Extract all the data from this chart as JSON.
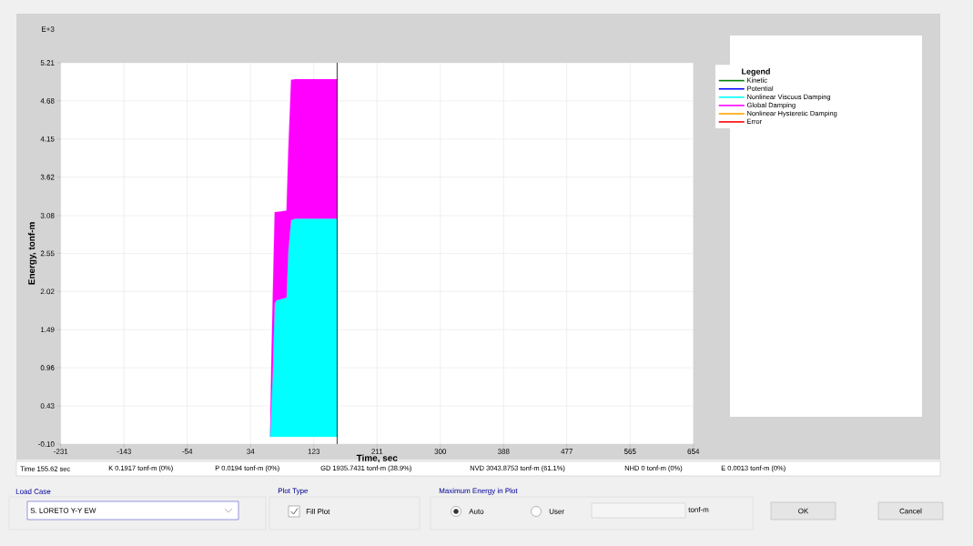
{
  "chart_data": {
    "type": "area",
    "stacked": true,
    "grid": true,
    "legend": "right",
    "legend_title": "Legend",
    "xlabel": "Time, sec",
    "ylabel": "Energy, tonf-m",
    "xlim": [
      -231,
      654
    ],
    "ylim": [
      -0.1,
      5.21
    ],
    "xticks": [
      -231,
      {
        "value": -142.5,
        "label": "-143"
      },
      -54,
      {
        "value": 34.5,
        "label": "34"
      },
      123,
      {
        "value": 211.5,
        "label": "211"
      },
      300,
      {
        "value": 388.5,
        "label": "388"
      },
      477,
      {
        "value": 565.5,
        "label": "565"
      },
      654
    ],
    "yticks": [
      {
        "value": -0.1,
        "label": "-0.10"
      },
      {
        "value": 0.431,
        "label": "0.43"
      },
      {
        "value": 0.962,
        "label": "0.96"
      },
      {
        "value": 1.493,
        "label": "1.49"
      },
      {
        "value": 2.024,
        "label": "2.02"
      },
      {
        "value": 2.555,
        "label": "2.55"
      },
      {
        "value": 3.08,
        "label": "3.08"
      },
      {
        "value": 3.617,
        "label": "3.62"
      },
      {
        "value": 4.148,
        "label": "4.15"
      },
      {
        "value": 4.679,
        "label": "4.68"
      },
      {
        "value": 5.21,
        "label": "5.21"
      }
    ],
    "x": [
      61.9,
      63.5,
      65.7,
      68.3,
      70.8,
      84.8,
      87.4,
      91.2,
      97.5,
      155.62
    ],
    "series": [
      {
        "name": "Kinetic",
        "type": "line",
        "color": "#008000",
        "values": [
          null,
          null,
          null,
          null,
          null,
          null,
          null,
          null,
          null,
          null
        ]
      },
      {
        "name": "Potential",
        "type": "line",
        "color": "#0000ff",
        "values": [
          null,
          null,
          null,
          null,
          null,
          null,
          null,
          null,
          null,
          null
        ]
      },
      {
        "name": "Nonlinear Viscous Damping",
        "color": "#00ffff",
        "values": [
          0,
          0.4,
          0.93,
          1.86,
          1.9,
          1.94,
          2.6,
          3.02,
          3.04,
          3.04
        ]
      },
      {
        "name": "Global Damping",
        "color": "#ff00ff",
        "values": [
          0,
          0.6,
          1.07,
          1.27,
          1.23,
          1.21,
          1.4,
          1.95,
          1.94,
          1.94
        ]
      },
      {
        "name": "Nonlinear Hysteretic Damping",
        "type": "line",
        "color": "#ffa500",
        "values": [
          null,
          null,
          null,
          null,
          null,
          null,
          null,
          null,
          null,
          null
        ]
      },
      {
        "name": "Error",
        "type": "line",
        "color": "#ff0000",
        "values": [
          null,
          null,
          null,
          null,
          null,
          null,
          null,
          null,
          null,
          null
        ]
      }
    ],
    "ref_lines": [
      {
        "axis": "x",
        "value": 155.62,
        "color": "#000000"
      }
    ],
    "annotations": [
      "E+3",
      "Time 155.62 sec",
      "K 0.1917 tonf-m (0%)",
      "P 0.0194 tonf-m (0%)",
      "GD 1935.7431 tonf-m (38.9%)",
      "NVD 3043.8753 tonf-m (61.1%)",
      "NHD 0 tonf-m (0%)",
      "E 0.0013 tonf-m (0%)",
      "Load Case",
      "S. LORETO Y-Y EW",
      "Plot Type",
      "Fill Plot",
      "Maximum Energy in Plot",
      "Auto",
      "User",
      "tonf-m",
      "OK",
      "Cancel"
    ]
  }
}
